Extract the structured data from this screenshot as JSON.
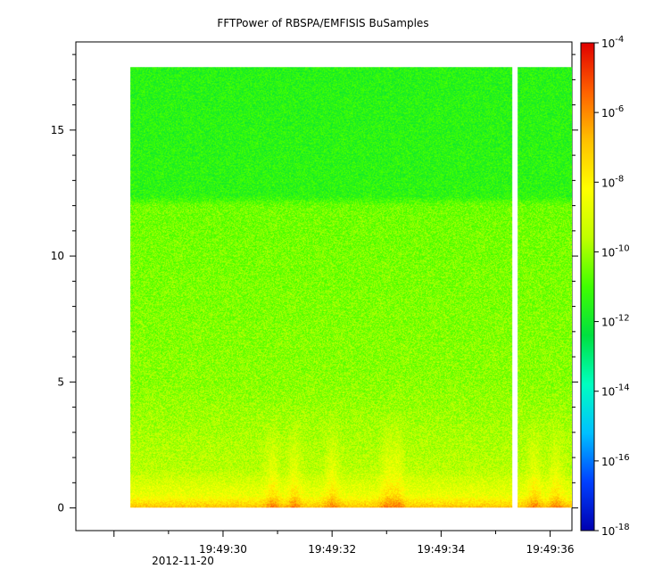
{
  "chart_data": {
    "type": "heatmap",
    "title": "FFTPower of RBSPA/EMFISIS  BuSamples",
    "x": {
      "ticks": [
        "19:49:30",
        "19:49:32",
        "19:49:34",
        "19:49:36"
      ],
      "tick_seconds": [
        30,
        32,
        34,
        36
      ],
      "range_seconds": [
        27.3,
        36.4
      ],
      "date_label": "2012-11-20",
      "data_start_seconds": 28.3,
      "data_gap_seconds": [
        35.3,
        35.4
      ]
    },
    "y": {
      "ticks": [
        "0",
        "5",
        "10",
        "15"
      ],
      "tick_values": [
        0,
        5,
        10,
        15
      ],
      "range": [
        -0.9,
        18.5
      ],
      "data_max": 17.5
    },
    "colorbar": {
      "scale": "log",
      "range": [
        1e-18,
        0.0001
      ],
      "ticks": [
        {
          "base": "10",
          "exp": "-4",
          "value": -4
        },
        {
          "base": "10",
          "exp": "-6",
          "value": -6
        },
        {
          "base": "10",
          "exp": "-8",
          "value": -8
        },
        {
          "base": "10",
          "exp": "-10",
          "value": -10
        },
        {
          "base": "10",
          "exp": "-12",
          "value": -12
        },
        {
          "base": "10",
          "exp": "-14",
          "value": -14
        },
        {
          "base": "10",
          "exp": "-16",
          "value": -16
        },
        {
          "base": "10",
          "exp": "-18",
          "value": -18
        }
      ],
      "colors": [
        "#0000b0",
        "#0040ff",
        "#00c0ff",
        "#00ffc0",
        "#00e040",
        "#40ff00",
        "#c0ff00",
        "#ffff00",
        "#ffc000",
        "#ff6000",
        "#e00000"
      ]
    },
    "power_profile": [
      {
        "freq": 0.0,
        "log_power": -6.8
      },
      {
        "freq": 0.5,
        "log_power": -8.6
      },
      {
        "freq": 1.5,
        "log_power": -9.6
      },
      {
        "freq": 5.0,
        "log_power": -10.2
      },
      {
        "freq": 12.0,
        "log_power": -10.5
      },
      {
        "freq": 12.4,
        "log_power": -11.4
      },
      {
        "freq": 17.5,
        "log_power": -11.5
      }
    ]
  }
}
